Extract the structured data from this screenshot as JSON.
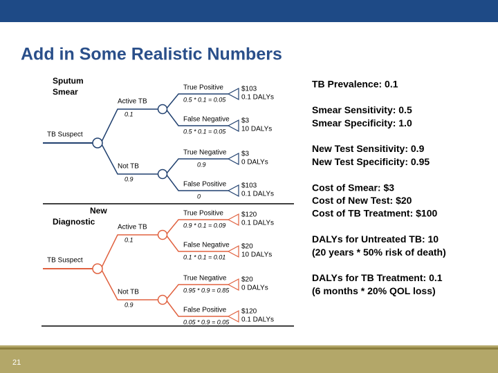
{
  "title": "Add in Some Realistic Numbers",
  "page_number": "21",
  "trees": [
    {
      "name": [
        "Sputum",
        "Smear"
      ],
      "root": "TB Suspect",
      "branches": [
        {
          "label": "Active TB",
          "prob": "0.1",
          "outcomes": [
            {
              "label": "True Positive",
              "calc": "0.5 * 0.1 = 0.05",
              "cost": "$103",
              "dalys": "0.1 DALYs"
            },
            {
              "label": "False Negative",
              "calc": "0.5 * 0.1 = 0.05",
              "cost": "$3",
              "dalys": "10 DALYs"
            }
          ]
        },
        {
          "label": "Not TB",
          "prob": "0.9",
          "outcomes": [
            {
              "label": "True Negative",
              "calc": "0.9",
              "cost": "$3",
              "dalys": "0 DALYs"
            },
            {
              "label": "False Positive",
              "calc": "0",
              "cost": "$103",
              "dalys": "0.1 DALYs"
            }
          ]
        }
      ]
    },
    {
      "name": [
        "New",
        "Diagnostic"
      ],
      "root": "TB Suspect",
      "branches": [
        {
          "label": "Active TB",
          "prob": "0.1",
          "outcomes": [
            {
              "label": "True Positive",
              "calc": "0.9 * 0.1 = 0.09",
              "cost": "$120",
              "dalys": "0.1 DALYs"
            },
            {
              "label": "False Negative",
              "calc": "0.1 * 0.1 = 0.01",
              "cost": "$20",
              "dalys": "10 DALYs"
            }
          ]
        },
        {
          "label": "Not TB",
          "prob": "0.9",
          "outcomes": [
            {
              "label": "True Negative",
              "calc": "0.95 * 0.9 = 0.85",
              "cost": "$20",
              "dalys": "0 DALYs"
            },
            {
              "label": "False Positive",
              "calc": "0.05 * 0.9 = 0.05",
              "cost": "$120",
              "dalys": "0.1 DALYs"
            }
          ]
        }
      ]
    }
  ],
  "facts": [
    [
      "TB Prevalence: 0.1"
    ],
    [
      "Smear Sensitivity: 0.5",
      "Smear Specificity: 1.0"
    ],
    [
      "New Test Sensitivity: 0.9",
      "New Test Specificity: 0.95"
    ],
    [
      "Cost of Smear: $3",
      "Cost of New Test: $20",
      "Cost of TB Treatment: $100"
    ],
    [
      "DALYs for Untreated TB: 10",
      "(20 years * 50% risk of death)"
    ],
    [
      "DALYs for TB Treatment: 0.1",
      "(6 months * 20% QOL loss)"
    ]
  ]
}
